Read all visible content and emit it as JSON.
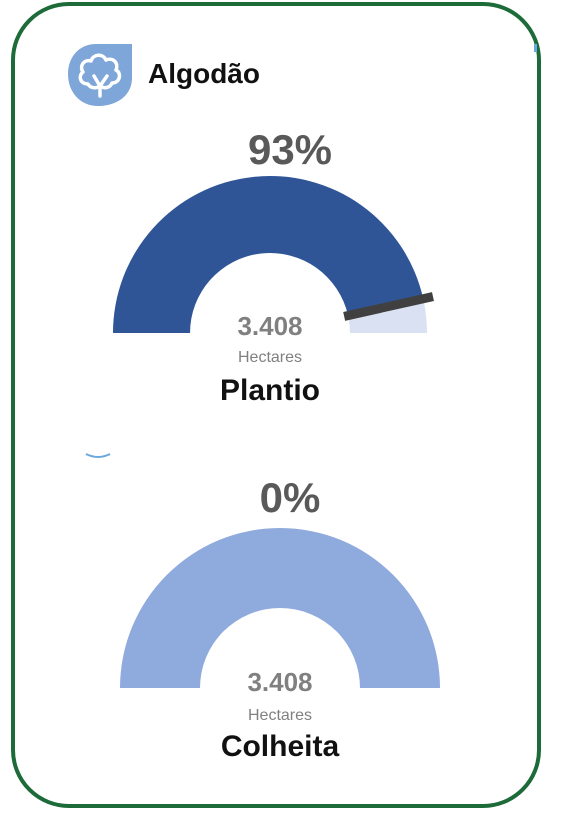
{
  "header": {
    "title": "Algodão",
    "icon": "cotton-icon"
  },
  "colors": {
    "border": "#1e6b3a",
    "plantio_fill": "#2f5597",
    "plantio_track": "#d9e1f2",
    "colheita_fill": "#8faadc",
    "needle": "#404040",
    "icon_bg": "#7ea6d8"
  },
  "chart_data": [
    {
      "type": "gauge",
      "title": "Plantio",
      "percent_label": "93%",
      "value_fraction": 0.93,
      "value_label": "3.408",
      "unit_label": "Hectares",
      "range": [
        0,
        1
      ]
    },
    {
      "type": "gauge",
      "title": "Colheita",
      "percent_label": "0%",
      "value_fraction": 0.0,
      "value_label": "3.408",
      "unit_label": "Hectares",
      "range": [
        0,
        1
      ]
    }
  ]
}
